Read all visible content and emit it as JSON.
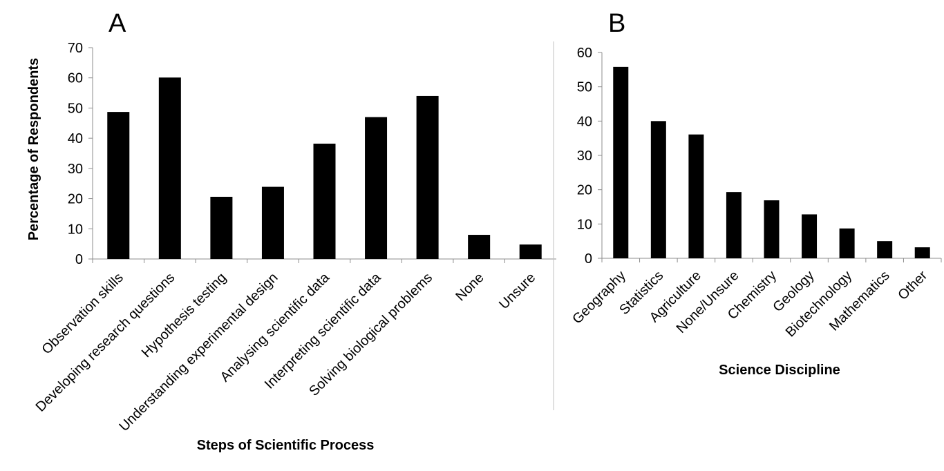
{
  "chart_data": [
    {
      "panel": "A",
      "type": "bar",
      "xlabel": "Steps of Scientific Process",
      "ylabel": "Percentage of Respondents",
      "ylim": [
        0,
        70
      ],
      "yticks": [
        0,
        10,
        20,
        30,
        40,
        50,
        60,
        70
      ],
      "grid": false,
      "legend": "none",
      "categories": [
        "Observation skills",
        "Developing research questions",
        "Hypothesis testing",
        "Understanding experimental design",
        "Analysing scientific data",
        "Interpreting scientific data",
        "Solving biological problems",
        "None",
        "Unsure"
      ],
      "values": [
        48.7,
        60.1,
        20.6,
        23.9,
        38.2,
        47.0,
        54.0,
        8.0,
        4.8
      ]
    },
    {
      "panel": "B",
      "type": "bar",
      "xlabel": "Science Discipline",
      "ylabel": "",
      "ylim": [
        0,
        60
      ],
      "yticks": [
        0,
        10,
        20,
        30,
        40,
        50,
        60
      ],
      "grid": false,
      "legend": "none",
      "categories": [
        "Geography",
        "Statistics",
        "Agriculture",
        "None/Unsure",
        "Chemistry",
        "Geology",
        "Biotechnology",
        "Mathematics",
        "Other"
      ],
      "values": [
        55.8,
        40.0,
        36.1,
        19.3,
        16.9,
        12.8,
        8.7,
        5.0,
        3.2
      ]
    }
  ]
}
